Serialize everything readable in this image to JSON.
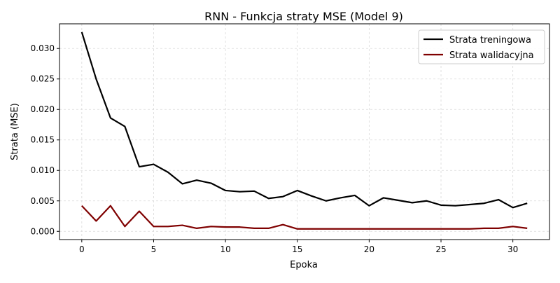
{
  "chart_data": {
    "type": "line",
    "title": "RNN - Funkcja straty MSE (Model 9)",
    "xlabel": "Epoka",
    "ylabel": "Strata (MSE)",
    "xlim": [
      -1.55,
      32.55
    ],
    "ylim": [
      -0.00135,
      0.03405
    ],
    "xticks": [
      0,
      5,
      10,
      15,
      20,
      25,
      30
    ],
    "xtick_labels": [
      "0",
      "5",
      "10",
      "15",
      "20",
      "25",
      "30"
    ],
    "yticks": [
      0.0,
      0.005,
      0.01,
      0.015,
      0.02,
      0.025,
      0.03
    ],
    "ytick_labels": [
      "0.000",
      "0.005",
      "0.010",
      "0.015",
      "0.020",
      "0.025",
      "0.030"
    ],
    "grid": true,
    "legend_position": "top-right",
    "x": [
      0,
      1,
      2,
      3,
      4,
      5,
      6,
      7,
      8,
      9,
      10,
      11,
      12,
      13,
      14,
      15,
      16,
      17,
      18,
      19,
      20,
      21,
      22,
      23,
      24,
      25,
      26,
      27,
      28,
      29,
      30,
      31
    ],
    "series": [
      {
        "name": "Strata treningowa",
        "color": "#000000",
        "values": [
          0.0327,
          0.025,
          0.0186,
          0.0172,
          0.0106,
          0.011,
          0.0097,
          0.0078,
          0.0084,
          0.0079,
          0.0067,
          0.0065,
          0.0066,
          0.0054,
          0.0057,
          0.0067,
          0.0058,
          0.005,
          0.0055,
          0.0059,
          0.0042,
          0.0055,
          0.0051,
          0.0047,
          0.005,
          0.0043,
          0.0042,
          0.0044,
          0.0046,
          0.0052,
          0.0039,
          0.0046
        ]
      },
      {
        "name": "Strata walidacyjna",
        "color": "#7f0000",
        "values": [
          0.0042,
          0.0017,
          0.0042,
          0.0008,
          0.0033,
          0.0008,
          0.0008,
          0.001,
          0.0005,
          0.0008,
          0.0007,
          0.0007,
          0.0005,
          0.0005,
          0.0011,
          0.0004,
          0.0004,
          0.0004,
          0.0004,
          0.0004,
          0.0004,
          0.0004,
          0.0004,
          0.0004,
          0.0004,
          0.0004,
          0.0004,
          0.0004,
          0.0005,
          0.0005,
          0.0008,
          0.0005
        ]
      }
    ]
  }
}
